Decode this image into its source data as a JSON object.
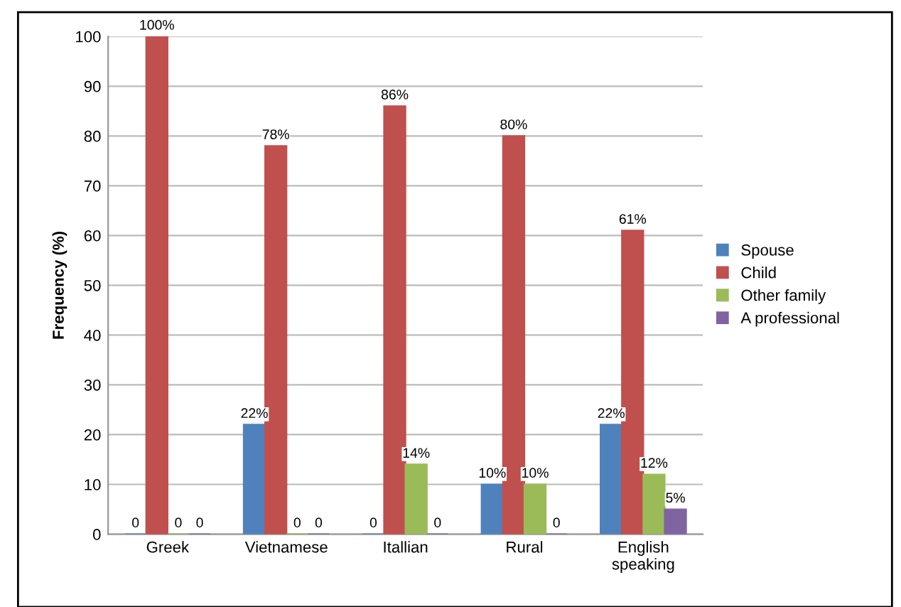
{
  "chart_data": {
    "type": "bar",
    "ylabel": "Frequency (%)",
    "categories": [
      "Greek",
      "Vietnamese",
      "Itallian",
      "Rural",
      "English\nspeaking"
    ],
    "series": [
      {
        "name": "Spouse",
        "color": "#4f81bd",
        "values": [
          0,
          22,
          0,
          10,
          22
        ],
        "value_labels": [
          "0",
          "22%",
          "0",
          "10%",
          "22%"
        ]
      },
      {
        "name": "Child",
        "color": "#c0504d",
        "values": [
          100,
          78,
          86,
          80,
          61
        ],
        "value_labels": [
          "100%",
          "78%",
          "86%",
          "80%",
          "61%"
        ]
      },
      {
        "name": "Other family",
        "color": "#9bbb59",
        "values": [
          0,
          0,
          14,
          10,
          12
        ],
        "value_labels": [
          "0",
          "0",
          "14%",
          "10%",
          "12%"
        ]
      },
      {
        "name": "A professional",
        "color": "#8064a2",
        "values": [
          0,
          0,
          0,
          0,
          5
        ],
        "value_labels": [
          "0",
          "0",
          "0",
          "0",
          "5%"
        ]
      }
    ],
    "ylim": [
      0,
      100
    ],
    "yticks": [
      0,
      10,
      20,
      30,
      40,
      50,
      60,
      70,
      80,
      90,
      100
    ],
    "grid": "y",
    "legend": "right"
  }
}
